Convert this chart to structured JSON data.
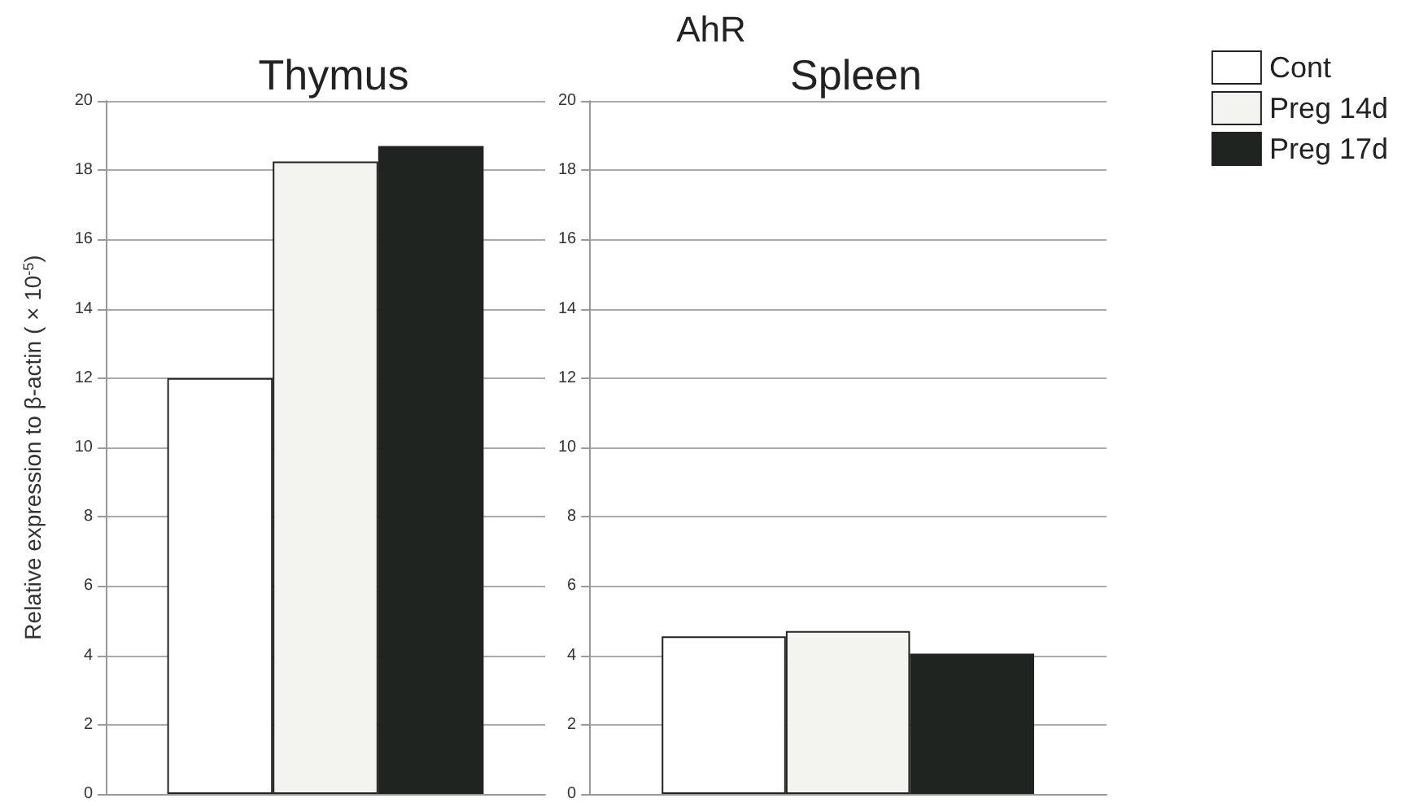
{
  "chart_data": [
    {
      "type": "bar",
      "subtitle": "Thymus",
      "ylabel": "Relative expression to β-actin ( × 10$^{-5}$)",
      "categories": [
        null
      ],
      "series": [
        {
          "color": "#ffffff",
          "values": [
            12.0
          ]
        },
        {
          "color": "#f3f3f0",
          "values": [
            18.25
          ]
        },
        {
          "color": "#1f2421",
          "values": [
            18.7
          ]
        }
      ],
      "ylim": [
        0,
        20
      ],
      "yticks": [
        0,
        2,
        4,
        6,
        8,
        10,
        12,
        14,
        16,
        18,
        20
      ],
      "grid": "y",
      "legend": false
    },
    {
      "type": "bar",
      "title": "AhR",
      "subtitle": "Spleen",
      "categories": [
        null
      ],
      "series": [
        {
          "name": "Cont",
          "color": "#ffffff",
          "values": [
            4.55
          ]
        },
        {
          "name": "Preg 14d",
          "color": "#f3f3f0",
          "values": [
            4.7
          ]
        },
        {
          "name": "Preg 17d",
          "color": "#1f2421",
          "values": [
            4.05
          ]
        }
      ],
      "ylim": [
        0,
        20
      ],
      "yticks": [
        0,
        2,
        4,
        6,
        8,
        10,
        12,
        14,
        16,
        18,
        20
      ],
      "grid": "y",
      "legend": "top right"
    }
  ]
}
